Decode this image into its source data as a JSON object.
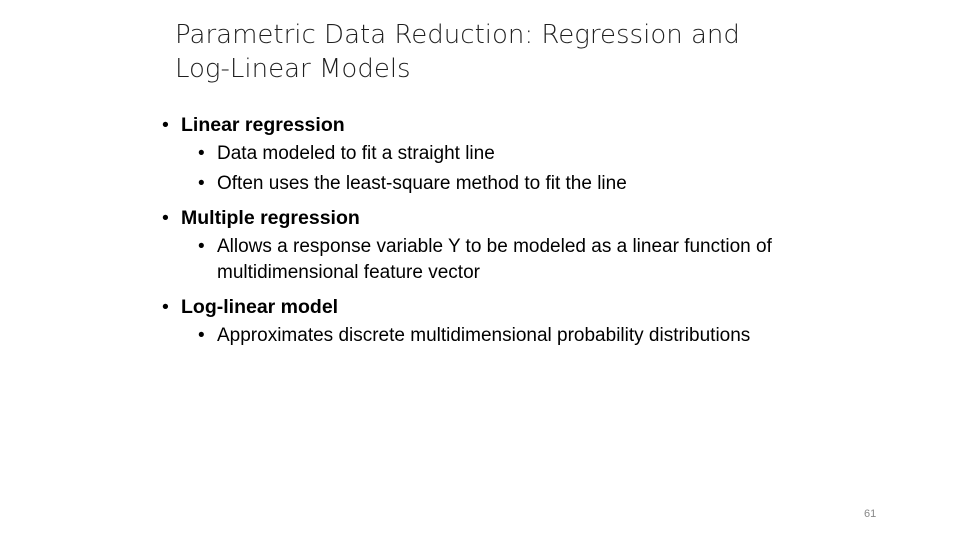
{
  "title": {
    "line1": "Parametric Data Reduction: Regression and",
    "line2": "Log-Linear Models"
  },
  "bullets": [
    {
      "label": "Linear regression",
      "subitems": [
        "Data modeled to fit a straight line",
        "Often uses the least-square method to fit the line"
      ]
    },
    {
      "label": "Multiple regression",
      "subitems": [
        "Allows a response variable Y to be modeled as a linear function of multidimensional feature vector"
      ]
    },
    {
      "label": "Log-linear model",
      "subitems": [
        "Approximates discrete multidimensional probability distributions"
      ]
    }
  ],
  "bullet_glyph": "•",
  "page_number": "61"
}
